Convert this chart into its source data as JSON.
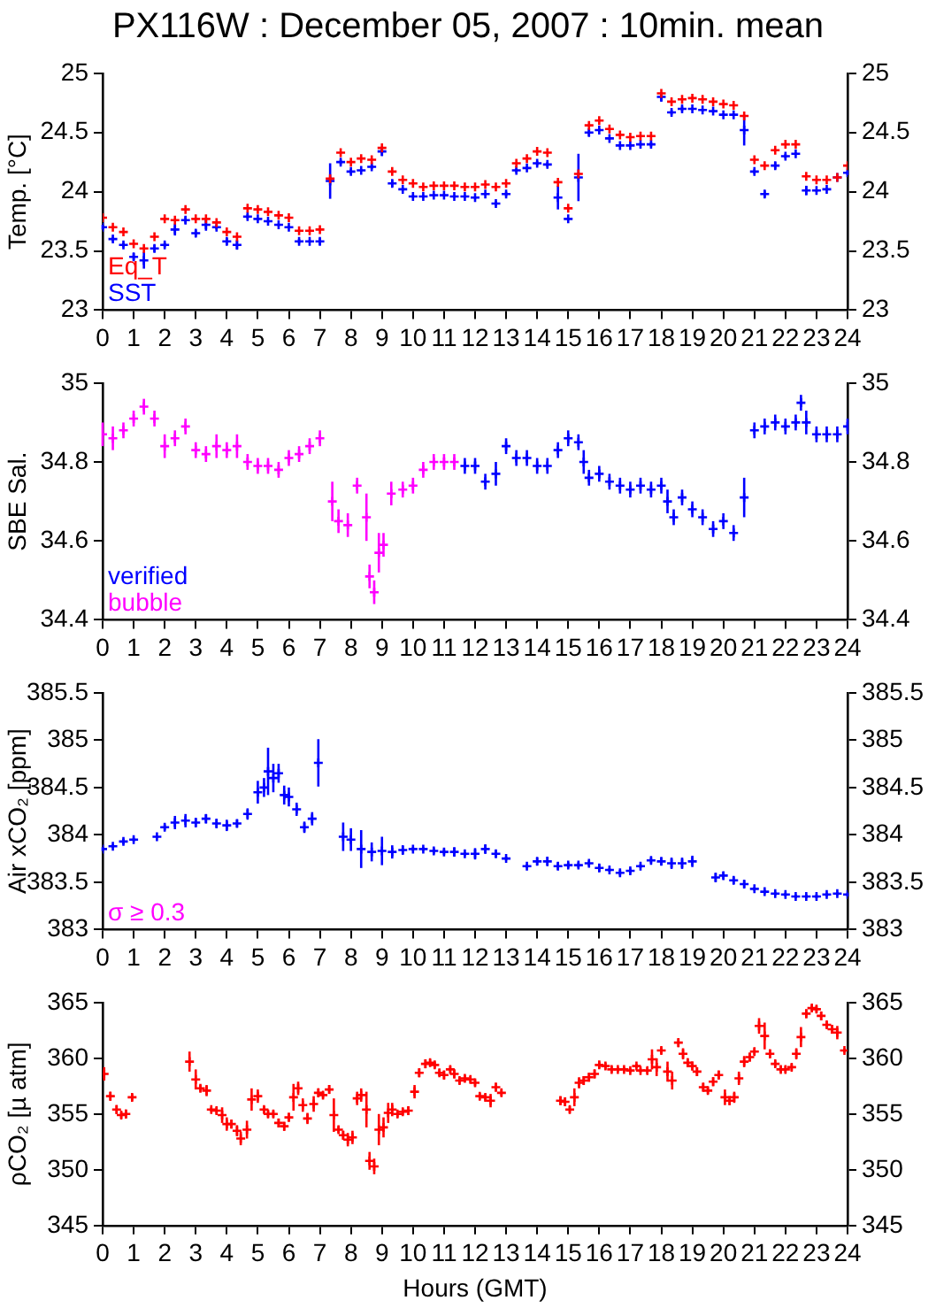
{
  "chart_data": [
    {
      "type": "scatter",
      "title": "PX116W : December 05, 2007 : 10min. mean",
      "ylabel": "Temp. [°C]",
      "marker": "cross",
      "legend": "bottom left",
      "grid": false,
      "xlim": [
        0,
        24
      ],
      "xticks": [
        0,
        1,
        2,
        3,
        4,
        5,
        6,
        7,
        8,
        9,
        10,
        11,
        12,
        13,
        14,
        15,
        16,
        17,
        18,
        19,
        20,
        21,
        22,
        23,
        24
      ],
      "ylim": [
        23,
        25
      ],
      "yticks": [
        23,
        23.5,
        24,
        24.5,
        25
      ],
      "y2lim": [
        23,
        25
      ],
      "y2ticks": [
        23,
        23.5,
        24,
        24.5,
        25
      ],
      "x": [
        0,
        0.33,
        0.67,
        1,
        1.33,
        1.67,
        2,
        2.33,
        2.67,
        3,
        3.33,
        3.67,
        4,
        4.33,
        4.67,
        5,
        5.33,
        5.67,
        6,
        6.33,
        6.67,
        7,
        7.33,
        7.67,
        8,
        8.33,
        8.67,
        9,
        9.33,
        9.67,
        10,
        10.33,
        10.67,
        11,
        11.33,
        11.67,
        12,
        12.33,
        12.67,
        13,
        13.33,
        13.67,
        14,
        14.33,
        14.67,
        15,
        15.33,
        15.67,
        16,
        16.33,
        16.67,
        17,
        17.33,
        17.67,
        18,
        18.33,
        18.67,
        19,
        19.33,
        19.67,
        20,
        20.33,
        20.67,
        21,
        21.33,
        21.67,
        22,
        22.33,
        22.67,
        23,
        23.33,
        23.67,
        24
      ],
      "series": [
        {
          "name": "Eq_T",
          "color": "#ff0000",
          "values": [
            23.78,
            23.7,
            23.66,
            23.56,
            23.52,
            23.62,
            23.77,
            23.76,
            23.85,
            23.77,
            23.77,
            23.74,
            23.66,
            23.62,
            23.86,
            23.85,
            23.83,
            23.8,
            23.78,
            23.67,
            23.67,
            23.68,
            24.11,
            24.33,
            24.25,
            24.28,
            24.27,
            24.37,
            24.17,
            24.1,
            24.07,
            24.04,
            24.05,
            24.05,
            24.05,
            24.04,
            24.04,
            24.06,
            24.04,
            24.07,
            24.24,
            24.28,
            24.34,
            24.33,
            24.08,
            23.86,
            24.15,
            24.56,
            24.6,
            24.53,
            24.48,
            24.46,
            24.47,
            24.47,
            24.83,
            24.76,
            24.78,
            24.79,
            24.78,
            24.76,
            24.74,
            24.73,
            24.64,
            24.27,
            24.22,
            24.35,
            24.4,
            24.4,
            24.13,
            24.1,
            24.1,
            24.12,
            24.22
          ]
        },
        {
          "name": "SST",
          "color": "#0000ff",
          "values": [
            23.7,
            23.6,
            23.55,
            23.45,
            23.42,
            23.52,
            23.55,
            23.68,
            23.76,
            23.65,
            23.72,
            23.7,
            23.58,
            23.55,
            23.79,
            23.77,
            23.75,
            23.72,
            23.7,
            23.58,
            23.58,
            23.58,
            24.09,
            24.25,
            24.17,
            24.18,
            24.21,
            24.34,
            24.07,
            24.02,
            23.96,
            23.96,
            23.97,
            23.97,
            23.96,
            23.96,
            23.95,
            23.98,
            23.9,
            23.98,
            24.18,
            24.2,
            24.24,
            24.23,
            23.95,
            23.77,
            24.12,
            24.5,
            24.52,
            24.45,
            24.39,
            24.39,
            24.4,
            24.4,
            24.8,
            24.67,
            24.7,
            24.7,
            24.69,
            24.68,
            24.65,
            24.65,
            24.52,
            24.17,
            23.98,
            24.22,
            24.3,
            24.32,
            24.01,
            24.01,
            24.02,
            24.12,
            24.16
          ],
          "errors": [
            0.02,
            0.02,
            0.02,
            0.03,
            0.07,
            0.03,
            0.02,
            0.05,
            0.03,
            0.03,
            0.05,
            0.02,
            0.03,
            0.04,
            0.02,
            0.01,
            0.01,
            0.01,
            0.01,
            0.02,
            0.01,
            0.03,
            0.15,
            0.02,
            0.02,
            0.01,
            0.02,
            0.04,
            0.03,
            0.01,
            0.01,
            0.01,
            0.01,
            0.01,
            0.01,
            0.01,
            0.01,
            0.01,
            0.02,
            0.02,
            0.02,
            0.01,
            0.02,
            0.02,
            0.1,
            0.01,
            0.2,
            0.03,
            0.01,
            0.01,
            0.01,
            0.01,
            0.01,
            0.02,
            0.04,
            0.02,
            0.02,
            0.01,
            0.01,
            0.01,
            0.01,
            0.01,
            0.13,
            0.02,
            0.03,
            0.03,
            0.02,
            0.01,
            0.04,
            0.01,
            0.01,
            0.02,
            0.02
          ]
        }
      ]
    },
    {
      "type": "scatter",
      "ylabel": "SBE Sal.",
      "marker": "cross",
      "legend": "bottom left",
      "grid": false,
      "xlim": [
        0,
        24
      ],
      "xticks": [
        0,
        1,
        2,
        3,
        4,
        5,
        6,
        7,
        8,
        9,
        10,
        11,
        12,
        13,
        14,
        15,
        16,
        17,
        18,
        19,
        20,
        21,
        22,
        23,
        24
      ],
      "ylim": [
        34.4,
        35
      ],
      "yticks": [
        34.4,
        34.6,
        34.8,
        35
      ],
      "y2lim": [
        34.4,
        35
      ],
      "y2ticks": [
        34.4,
        34.6,
        34.8,
        35
      ],
      "series": [
        {
          "name": "verified",
          "color": "#0000ff",
          "x": [
            11.67,
            12,
            12.33,
            12.67,
            13,
            13.33,
            13.67,
            14,
            14.33,
            14.67,
            15,
            15.33,
            15.5,
            15.67,
            16,
            16.33,
            16.67,
            17,
            17.33,
            17.67,
            18,
            18.2,
            18.4,
            18.67,
            19,
            19.33,
            19.67,
            20,
            20.33,
            20.67,
            21,
            21.33,
            21.67,
            22,
            22.33,
            22.5,
            22.67,
            23,
            23.33,
            23.67,
            24
          ],
          "values": [
            34.79,
            34.79,
            34.75,
            34.77,
            34.84,
            34.81,
            34.81,
            34.79,
            34.79,
            34.83,
            34.86,
            34.85,
            34.8,
            34.76,
            34.77,
            34.75,
            34.74,
            34.73,
            34.74,
            34.73,
            34.74,
            34.7,
            34.66,
            34.71,
            34.68,
            34.66,
            34.63,
            34.65,
            34.62,
            34.71,
            34.88,
            34.89,
            34.9,
            34.89,
            34.9,
            34.95,
            34.9,
            34.87,
            34.87,
            34.87,
            34.89
          ],
          "errors": [
            0.02,
            0.02,
            0.02,
            0.03,
            0.02,
            0.02,
            0.02,
            0.02,
            0.02,
            0.02,
            0.02,
            0.02,
            0.03,
            0.02,
            0.02,
            0.02,
            0.02,
            0.02,
            0.02,
            0.02,
            0.02,
            0.03,
            0.02,
            0.02,
            0.02,
            0.02,
            0.02,
            0.02,
            0.02,
            0.05,
            0.02,
            0.02,
            0.02,
            0.02,
            0.02,
            0.02,
            0.03,
            0.02,
            0.02,
            0.02,
            0.02
          ]
        },
        {
          "name": "bubble",
          "color": "#ff00ff",
          "x": [
            0,
            0.33,
            0.67,
            1,
            1.33,
            1.67,
            2,
            2.33,
            2.67,
            3,
            3.33,
            3.67,
            4,
            4.33,
            4.67,
            5,
            5.33,
            5.67,
            6,
            6.33,
            6.67,
            7,
            7.4,
            7.6,
            7.9,
            8.2,
            8.5,
            8.6,
            8.75,
            8.9,
            9.05,
            9.3,
            9.67,
            10,
            10.33,
            10.67,
            11,
            11.33
          ],
          "values": [
            34.87,
            34.86,
            34.88,
            34.91,
            34.94,
            34.91,
            34.84,
            34.86,
            34.89,
            34.83,
            34.82,
            34.84,
            34.83,
            34.84,
            34.8,
            34.79,
            34.79,
            34.78,
            34.81,
            34.82,
            34.84,
            34.86,
            34.7,
            34.65,
            34.64,
            34.74,
            34.66,
            34.51,
            34.47,
            34.57,
            34.59,
            34.72,
            34.73,
            34.74,
            34.78,
            34.8,
            34.8,
            34.8
          ],
          "errors": [
            0.03,
            0.03,
            0.02,
            0.02,
            0.02,
            0.02,
            0.03,
            0.02,
            0.02,
            0.02,
            0.02,
            0.03,
            0.02,
            0.03,
            0.02,
            0.02,
            0.02,
            0.02,
            0.02,
            0.02,
            0.02,
            0.02,
            0.05,
            0.03,
            0.03,
            0.02,
            0.06,
            0.03,
            0.03,
            0.05,
            0.03,
            0.03,
            0.02,
            0.02,
            0.02,
            0.02,
            0.02,
            0.02
          ]
        }
      ]
    },
    {
      "type": "scatter",
      "ylabel": "Air xCO₂ [ppm]",
      "marker": "cross",
      "grid": false,
      "annotations": [
        "σ ≥ 0.3"
      ],
      "xlim": [
        0,
        24
      ],
      "xticks": [
        0,
        1,
        2,
        3,
        4,
        5,
        6,
        7,
        8,
        9,
        10,
        11,
        12,
        13,
        14,
        15,
        16,
        17,
        18,
        19,
        20,
        21,
        22,
        23,
        24
      ],
      "ylim": [
        383,
        385.5
      ],
      "yticks": [
        383,
        383.5,
        384,
        384.5,
        385,
        385.5
      ],
      "y2lim": [
        383,
        385.5
      ],
      "y2ticks": [
        383,
        383.5,
        384,
        384.5,
        385,
        385.5
      ],
      "series": [
        {
          "color": "#0000ff",
          "x": [
            0,
            0.33,
            0.67,
            1,
            1.75,
            2,
            2.33,
            2.67,
            3,
            3.33,
            3.67,
            4,
            4.33,
            4.67,
            5,
            5.2,
            5.33,
            5.5,
            5.67,
            5.85,
            6,
            6.25,
            6.5,
            6.75,
            6.95,
            7.75,
            8,
            8.33,
            8.67,
            9,
            9.33,
            9.67,
            10,
            10.33,
            10.67,
            11,
            11.33,
            11.67,
            12,
            12.33,
            12.67,
            13,
            13.67,
            14,
            14.33,
            14.67,
            15,
            15.33,
            15.67,
            16,
            16.33,
            16.67,
            17,
            17.33,
            17.67,
            18,
            18.33,
            18.67,
            19,
            19.75,
            20,
            20.33,
            20.67,
            21,
            21.33,
            21.67,
            22,
            22.33,
            22.67,
            23,
            23.33,
            23.67,
            24
          ],
          "values": [
            383.85,
            383.88,
            383.93,
            383.95,
            383.98,
            384.08,
            384.13,
            384.15,
            384.13,
            384.17,
            384.12,
            384.1,
            384.12,
            384.22,
            384.45,
            384.5,
            384.67,
            384.6,
            384.65,
            384.42,
            384.4,
            384.27,
            384.08,
            384.17,
            384.76,
            383.98,
            383.95,
            383.85,
            383.82,
            383.83,
            383.82,
            383.84,
            383.85,
            383.85,
            383.83,
            383.82,
            383.82,
            383.8,
            383.8,
            383.85,
            383.8,
            383.75,
            383.67,
            383.72,
            383.72,
            383.67,
            383.68,
            383.68,
            383.7,
            383.65,
            383.63,
            383.6,
            383.62,
            383.67,
            383.73,
            383.72,
            383.7,
            383.7,
            383.72,
            383.55,
            383.57,
            383.52,
            383.48,
            383.43,
            383.4,
            383.38,
            383.37,
            383.35,
            383.35,
            383.35,
            383.37,
            383.38,
            383.37
          ],
          "errors": [
            0.02,
            0.02,
            0.03,
            0.02,
            0.01,
            0.03,
            0.07,
            0.07,
            0.05,
            0.05,
            0.05,
            0.06,
            0.04,
            0.06,
            0.12,
            0.1,
            0.25,
            0.15,
            0.1,
            0.1,
            0.1,
            0.07,
            0.06,
            0.07,
            0.25,
            0.15,
            0.12,
            0.2,
            0.1,
            0.15,
            0.07,
            0.05,
            0.02,
            0.02,
            0.03,
            0.03,
            0.05,
            0.02,
            0.06,
            0.05,
            0.04,
            0.02,
            0.02,
            0.04,
            0.05,
            0.04,
            0.03,
            0.03,
            0.03,
            0.04,
            0.02,
            0.03,
            0.03,
            0.02,
            0.03,
            0.04,
            0.06,
            0.06,
            0.06,
            0.05,
            0.04,
            0.04,
            0.04,
            0.02,
            0.02,
            0.02,
            0.02,
            0.02,
            0.02,
            0.02,
            0.02,
            0.02,
            0.02
          ]
        }
      ]
    },
    {
      "type": "scatter",
      "xlabel": "Hours (GMT)",
      "ylabel": "ρCO₂ [µ atm]",
      "marker": "cross",
      "grid": false,
      "xlim": [
        0,
        24
      ],
      "xticks": [
        0,
        1,
        2,
        3,
        4,
        5,
        6,
        7,
        8,
        9,
        10,
        11,
        12,
        13,
        14,
        15,
        16,
        17,
        18,
        19,
        20,
        21,
        22,
        23,
        24
      ],
      "ylim": [
        345,
        365
      ],
      "yticks": [
        345,
        350,
        355,
        360,
        365
      ],
      "y2lim": [
        345,
        365
      ],
      "y2ticks": [
        345,
        350,
        355,
        360,
        365
      ],
      "series": [
        {
          "color": "#ff0000",
          "x": [
            0.05,
            0.25,
            0.45,
            0.6,
            0.75,
            0.95,
            2.8,
            3.0,
            3.15,
            3.35,
            3.5,
            3.67,
            3.85,
            4.0,
            4.15,
            4.33,
            4.45,
            4.65,
            4.8,
            5.0,
            5.2,
            5.33,
            5.5,
            5.67,
            5.85,
            6.0,
            6.15,
            6.3,
            6.45,
            6.6,
            6.8,
            6.95,
            7.1,
            7.3,
            7.45,
            7.6,
            7.75,
            7.9,
            8.05,
            8.2,
            8.33,
            8.5,
            8.6,
            8.75,
            8.9,
            9.05,
            9.2,
            9.33,
            9.5,
            9.67,
            9.85,
            10.05,
            10.2,
            10.4,
            10.55,
            10.7,
            10.85,
            11.0,
            11.2,
            11.33,
            11.5,
            11.67,
            11.85,
            12.0,
            12.15,
            12.33,
            12.5,
            12.67,
            12.85,
            14.75,
            14.9,
            15.05,
            15.2,
            15.35,
            15.5,
            15.67,
            15.85,
            16.0,
            16.2,
            16.4,
            16.6,
            16.8,
            17.0,
            17.2,
            17.33,
            17.55,
            17.7,
            17.85,
            18.0,
            18.2,
            18.35,
            18.55,
            18.7,
            18.85,
            19.0,
            19.15,
            19.35,
            19.5,
            19.67,
            19.85,
            20.05,
            20.2,
            20.35,
            20.5,
            20.67,
            20.85,
            21.0,
            21.15,
            21.33,
            21.5,
            21.67,
            21.85,
            22.0,
            22.2,
            22.35,
            22.5,
            22.67,
            22.85,
            23.0,
            23.15,
            23.33,
            23.5,
            23.67,
            23.9
          ],
          "values": [
            358.6,
            356.6,
            355.4,
            354.9,
            355.0,
            356.5,
            359.7,
            358.1,
            357.3,
            357.1,
            355.4,
            355.3,
            354.9,
            354.1,
            354.1,
            353.5,
            352.8,
            353.6,
            356.3,
            356.6,
            355.4,
            355.0,
            355.0,
            354.2,
            353.9,
            354.7,
            356.5,
            357.3,
            355.8,
            354.6,
            355.9,
            356.9,
            356.7,
            357.2,
            354.9,
            353.6,
            353.1,
            352.7,
            352.9,
            356.4,
            356.7,
            355.4,
            350.8,
            350.3,
            353.6,
            353.8,
            355.1,
            355.4,
            355.0,
            355.2,
            355.3,
            357.0,
            358.7,
            359.5,
            359.6,
            359.4,
            358.7,
            358.5,
            359.0,
            358.6,
            358.0,
            358.2,
            358.1,
            357.8,
            356.6,
            356.5,
            356.2,
            357.4,
            356.9,
            356.2,
            356.1,
            355.4,
            356.5,
            357.8,
            358.0,
            358.3,
            358.6,
            359.4,
            359.3,
            359.0,
            359.0,
            359.0,
            358.9,
            359.3,
            358.9,
            358.9,
            359.9,
            359.2,
            360.7,
            358.8,
            358.0,
            361.4,
            360.4,
            359.6,
            359.3,
            358.8,
            357.4,
            357.1,
            357.9,
            358.5,
            356.5,
            356.2,
            356.5,
            358.2,
            359.7,
            360.1,
            360.6,
            362.9,
            362.0,
            360.4,
            359.5,
            359.0,
            359.0,
            359.2,
            360.4,
            361.9,
            364.0,
            364.5,
            364.4,
            363.8,
            363.0,
            362.6,
            362.3,
            360.7
          ],
          "errors": [
            0.6,
            0.4,
            0.4,
            0.3,
            0.4,
            0.3,
            0.9,
            0.9,
            0.3,
            0.5,
            0.2,
            0.3,
            0.7,
            0.6,
            0.4,
            0.5,
            0.6,
            0.8,
            1.0,
            0.6,
            0.3,
            0.3,
            0.3,
            0.4,
            0.4,
            0.4,
            1.2,
            0.6,
            0.6,
            0.5,
            0.7,
            0.4,
            0.3,
            0.4,
            1.5,
            0.3,
            0.4,
            0.6,
            0.6,
            0.6,
            0.6,
            1.6,
            0.8,
            0.7,
            1.4,
            0.9,
            0.9,
            0.6,
            0.3,
            0.3,
            0.4,
            0.6,
            0.4,
            0.4,
            0.3,
            0.3,
            0.3,
            0.4,
            0.3,
            0.4,
            0.3,
            0.3,
            0.3,
            0.3,
            0.3,
            0.3,
            0.6,
            0.4,
            0.3,
            0.4,
            0.4,
            0.3,
            0.8,
            0.5,
            0.4,
            0.4,
            0.4,
            0.3,
            0.3,
            0.3,
            0.2,
            0.2,
            0.2,
            0.2,
            0.2,
            0.3,
            0.9,
            0.8,
            0.3,
            0.9,
            0.8,
            0.4,
            0.5,
            0.4,
            0.4,
            0.4,
            0.4,
            0.3,
            0.4,
            0.4,
            0.7,
            0.4,
            0.5,
            0.6,
            0.5,
            0.4,
            0.3,
            0.7,
            1.2,
            0.4,
            0.3,
            0.3,
            0.3,
            0.3,
            0.5,
            0.9,
            0.4,
            0.3,
            0.3,
            0.4,
            0.3,
            0.4,
            0.6,
            0.2
          ]
        }
      ]
    }
  ]
}
